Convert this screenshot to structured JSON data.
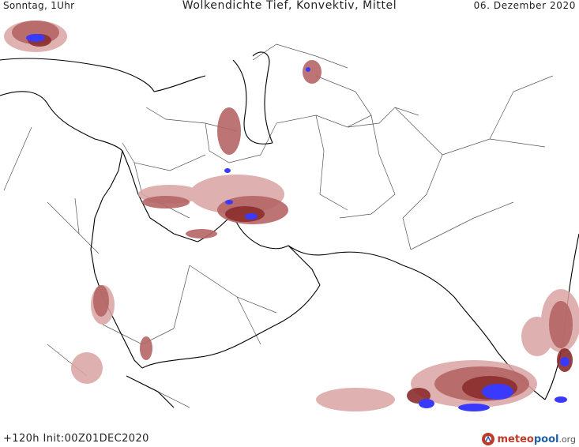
{
  "header": {
    "left": "Sonntag, 1Uhr",
    "title": "Wolkendichte   Tief, Konvektiv, Mittel",
    "right": "06. Dezember 2020"
  },
  "footer": {
    "run": "+120h Init:00Z01DEC2020",
    "logo_meteo": "meteo",
    "logo_pool": "pool",
    "logo_org": ".org"
  },
  "legend_colors": {
    "light": "#d9a3a3",
    "medium": "#b56565",
    "dense": "#8b2d2d",
    "convective": "#3a3aff",
    "coast": "#000000",
    "border": "#555555"
  }
}
